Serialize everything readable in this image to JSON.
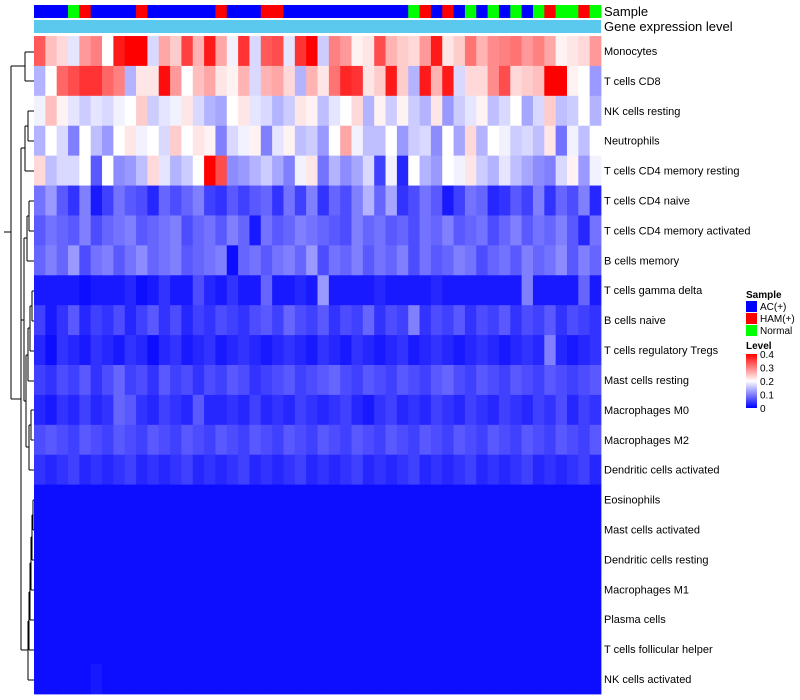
{
  "chart_data": {
    "type": "heatmap",
    "title": "",
    "annotations": {
      "sample_label": "Sample",
      "gene_label": "Gene expression level",
      "sample_groups": [
        "AC",
        "AC",
        "AC",
        "N",
        "HAM",
        "AC",
        "AC",
        "AC",
        "AC",
        "HAM",
        "AC",
        "AC",
        "AC",
        "AC",
        "AC",
        "AC",
        "HAM",
        "AC",
        "AC",
        "AC",
        "HAM",
        "HAM",
        "AC",
        "AC",
        "AC",
        "AC",
        "AC",
        "AC",
        "AC",
        "AC",
        "AC",
        "AC",
        "AC",
        "N",
        "HAM",
        "AC",
        "HAM",
        "AC",
        "N",
        "AC",
        "N",
        "AC",
        "N",
        "AC",
        "N",
        "HAM",
        "N",
        "N",
        "HAM",
        "N"
      ]
    },
    "rows": [
      "Monocytes",
      "T cells CD8",
      "NK cells resting",
      "Neutrophils",
      "T cells CD4 memory resting",
      "T cells CD4 naive",
      "T cells CD4 memory activated",
      "B cells memory",
      "T cells gamma delta",
      "B cells naive",
      "T cells regulatory  Tregs",
      "Mast cells resting",
      "Macrophages M0",
      "Macrophages M2",
      "Dendritic cells activated",
      "Eosinophils",
      "Mast cells activated",
      "Dendritic cells resting",
      "Macrophages M1",
      "Plasma cells",
      "T cells follicular helper",
      "NK cells activated"
    ],
    "matrix": [
      [
        0.33,
        0.25,
        0.23,
        0.18,
        0.28,
        0.3,
        0.2,
        0.38,
        0.4,
        0.4,
        0.17,
        0.27,
        0.24,
        0.35,
        0.26,
        0.38,
        0.27,
        0.19,
        0.36,
        0.17,
        0.33,
        0.34,
        0.18,
        0.36,
        0.4,
        0.16,
        0.3,
        0.28,
        0.21,
        0.22,
        0.34,
        0.26,
        0.24,
        0.23,
        0.28,
        0.38,
        0.22,
        0.24,
        0.31,
        0.26,
        0.29,
        0.3,
        0.31,
        0.28,
        0.3,
        0.27,
        0.21,
        0.22,
        0.23,
        0.28
      ],
      [
        0.14,
        0.2,
        0.32,
        0.34,
        0.36,
        0.36,
        0.32,
        0.3,
        0.14,
        0.22,
        0.22,
        0.39,
        0.28,
        0.2,
        0.25,
        0.27,
        0.22,
        0.21,
        0.26,
        0.17,
        0.26,
        0.27,
        0.23,
        0.14,
        0.26,
        0.22,
        0.31,
        0.37,
        0.36,
        0.22,
        0.24,
        0.38,
        0.24,
        0.14,
        0.38,
        0.26,
        0.38,
        0.17,
        0.23,
        0.23,
        0.29,
        0.34,
        0.23,
        0.24,
        0.25,
        0.4,
        0.4,
        0.21,
        0.2,
        0.12
      ],
      [
        0.19,
        0.25,
        0.21,
        0.18,
        0.16,
        0.18,
        0.17,
        0.19,
        0.2,
        0.24,
        0.16,
        0.18,
        0.19,
        0.22,
        0.17,
        0.14,
        0.13,
        0.2,
        0.22,
        0.18,
        0.17,
        0.14,
        0.16,
        0.22,
        0.21,
        0.15,
        0.18,
        0.2,
        0.23,
        0.14,
        0.21,
        0.16,
        0.21,
        0.16,
        0.14,
        0.22,
        0.12,
        0.16,
        0.18,
        0.21,
        0.15,
        0.17,
        0.2,
        0.13,
        0.17,
        0.24,
        0.15,
        0.16,
        0.2,
        0.14
      ],
      [
        0.14,
        0.2,
        0.17,
        0.1,
        0.2,
        0.15,
        0.12,
        0.2,
        0.22,
        0.19,
        0.2,
        0.17,
        0.24,
        0.2,
        0.22,
        0.21,
        0.1,
        0.17,
        0.19,
        0.21,
        0.1,
        0.18,
        0.21,
        0.15,
        0.16,
        0.12,
        0.2,
        0.27,
        0.19,
        0.15,
        0.15,
        0.2,
        0.12,
        0.16,
        0.17,
        0.11,
        0.2,
        0.13,
        0.23,
        0.14,
        0.2,
        0.19,
        0.16,
        0.17,
        0.15,
        0.22,
        0.09,
        0.19,
        0.15,
        0.2
      ],
      [
        0.23,
        0.15,
        0.17,
        0.17,
        0.2,
        0.07,
        0.2,
        0.11,
        0.12,
        0.15,
        0.23,
        0.18,
        0.14,
        0.16,
        0.2,
        0.4,
        0.34,
        0.11,
        0.12,
        0.14,
        0.16,
        0.13,
        0.1,
        0.19,
        0.22,
        0.09,
        0.14,
        0.11,
        0.13,
        0.17,
        0.05,
        0.19,
        0.03,
        0.2,
        0.14,
        0.12,
        0.2,
        0.19,
        0.22,
        0.16,
        0.14,
        0.18,
        0.15,
        0.13,
        0.11,
        0.1,
        0.17,
        0.21,
        0.12,
        0.19
      ],
      [
        0.09,
        0.12,
        0.07,
        0.04,
        0.1,
        0.02,
        0.05,
        0.09,
        0.07,
        0.06,
        0.03,
        0.08,
        0.06,
        0.08,
        0.1,
        0.05,
        0.04,
        0.07,
        0.05,
        0.07,
        0.08,
        0.04,
        0.09,
        0.05,
        0.1,
        0.04,
        0.08,
        0.06,
        0.1,
        0.14,
        0.08,
        0.13,
        0.04,
        0.06,
        0.09,
        0.07,
        0.02,
        0.05,
        0.09,
        0.08,
        0.03,
        0.04,
        0.07,
        0.05,
        0.1,
        0.04,
        0.08,
        0.06,
        0.1,
        0.03
      ],
      [
        0.07,
        0.09,
        0.08,
        0.07,
        0.1,
        0.06,
        0.08,
        0.09,
        0.1,
        0.07,
        0.08,
        0.09,
        0.1,
        0.06,
        0.08,
        0.09,
        0.07,
        0.1,
        0.08,
        0.02,
        0.09,
        0.07,
        0.08,
        0.1,
        0.09,
        0.08,
        0.07,
        0.06,
        0.1,
        0.08,
        0.09,
        0.07,
        0.08,
        0.06,
        0.09,
        0.08,
        0.1,
        0.07,
        0.08,
        0.09,
        0.06,
        0.08,
        0.1,
        0.07,
        0.09,
        0.08,
        0.1,
        0.07,
        0.03,
        0.09
      ],
      [
        0.08,
        0.1,
        0.08,
        0.12,
        0.06,
        0.09,
        0.1,
        0.07,
        0.09,
        0.11,
        0.08,
        0.09,
        0.1,
        0.07,
        0.08,
        0.09,
        0.1,
        0.01,
        0.08,
        0.09,
        0.07,
        0.09,
        0.1,
        0.08,
        0.12,
        0.06,
        0.09,
        0.08,
        0.1,
        0.07,
        0.09,
        0.08,
        0.1,
        0.06,
        0.09,
        0.07,
        0.08,
        0.1,
        0.09,
        0.06,
        0.08,
        0.09,
        0.07,
        0.1,
        0.08,
        0.09,
        0.11,
        0.07,
        0.1,
        0.08
      ],
      [
        0.02,
        0.02,
        0.02,
        0.02,
        0.01,
        0.02,
        0.02,
        0.02,
        0.03,
        0.01,
        0.02,
        0.04,
        0.02,
        0.02,
        0.06,
        0.03,
        0.02,
        0.04,
        0.02,
        0.02,
        0.08,
        0.02,
        0.02,
        0.03,
        0.02,
        0.12,
        0.02,
        0.02,
        0.02,
        0.02,
        0.03,
        0.02,
        0.02,
        0.02,
        0.02,
        0.03,
        0.02,
        0.02,
        0.02,
        0.02,
        0.02,
        0.02,
        0.02,
        0.1,
        0.02,
        0.02,
        0.02,
        0.02,
        0.08,
        0.02
      ],
      [
        0.05,
        0.02,
        0.04,
        0.07,
        0.03,
        0.05,
        0.04,
        0.06,
        0.03,
        0.05,
        0.07,
        0.04,
        0.06,
        0.03,
        0.05,
        0.04,
        0.06,
        0.05,
        0.04,
        0.06,
        0.07,
        0.05,
        0.08,
        0.06,
        0.05,
        0.07,
        0.04,
        0.06,
        0.05,
        0.08,
        0.04,
        0.06,
        0.05,
        0.1,
        0.04,
        0.06,
        0.05,
        0.07,
        0.04,
        0.06,
        0.05,
        0.07,
        0.04,
        0.06,
        0.05,
        0.07,
        0.04,
        0.06,
        0.05,
        0.04
      ],
      [
        0.03,
        0.01,
        0.04,
        0.03,
        0.02,
        0.04,
        0.03,
        0.02,
        0.04,
        0.03,
        0.01,
        0.03,
        0.04,
        0.02,
        0.03,
        0.04,
        0.02,
        0.03,
        0.04,
        0.03,
        0.02,
        0.03,
        0.04,
        0.03,
        0.02,
        0.04,
        0.03,
        0.02,
        0.04,
        0.03,
        0.02,
        0.03,
        0.04,
        0.02,
        0.03,
        0.04,
        0.03,
        0.02,
        0.03,
        0.04,
        0.03,
        0.02,
        0.03,
        0.04,
        0.03,
        0.1,
        0.03,
        0.02,
        0.03,
        0.04
      ],
      [
        0.05,
        0.04,
        0.06,
        0.05,
        0.07,
        0.04,
        0.06,
        0.08,
        0.05,
        0.06,
        0.04,
        0.07,
        0.05,
        0.06,
        0.04,
        0.06,
        0.05,
        0.07,
        0.06,
        0.04,
        0.05,
        0.06,
        0.07,
        0.05,
        0.06,
        0.07,
        0.08,
        0.06,
        0.05,
        0.07,
        0.06,
        0.05,
        0.07,
        0.06,
        0.05,
        0.07,
        0.08,
        0.06,
        0.05,
        0.07,
        0.06,
        0.05,
        0.07,
        0.06,
        0.05,
        0.07,
        0.06,
        0.05,
        0.06,
        0.07
      ],
      [
        0.03,
        0.02,
        0.04,
        0.03,
        0.05,
        0.03,
        0.04,
        0.08,
        0.07,
        0.04,
        0.03,
        0.05,
        0.04,
        0.03,
        0.07,
        0.03,
        0.03,
        0.04,
        0.03,
        0.05,
        0.03,
        0.04,
        0.03,
        0.05,
        0.04,
        0.03,
        0.04,
        0.05,
        0.03,
        0.02,
        0.04,
        0.05,
        0.03,
        0.04,
        0.03,
        0.05,
        0.04,
        0.03,
        0.05,
        0.04,
        0.03,
        0.05,
        0.04,
        0.03,
        0.05,
        0.04,
        0.06,
        0.03,
        0.05,
        0.04
      ],
      [
        0.06,
        0.07,
        0.06,
        0.05,
        0.07,
        0.06,
        0.05,
        0.07,
        0.06,
        0.05,
        0.07,
        0.06,
        0.05,
        0.07,
        0.06,
        0.05,
        0.07,
        0.06,
        0.05,
        0.07,
        0.06,
        0.05,
        0.07,
        0.06,
        0.05,
        0.07,
        0.06,
        0.05,
        0.07,
        0.06,
        0.05,
        0.07,
        0.06,
        0.05,
        0.07,
        0.06,
        0.05,
        0.07,
        0.06,
        0.05,
        0.07,
        0.06,
        0.05,
        0.07,
        0.06,
        0.05,
        0.07,
        0.06,
        0.05,
        0.07
      ],
      [
        0.04,
        0.03,
        0.04,
        0.05,
        0.03,
        0.04,
        0.03,
        0.04,
        0.05,
        0.03,
        0.04,
        0.03,
        0.04,
        0.05,
        0.03,
        0.04,
        0.03,
        0.04,
        0.05,
        0.03,
        0.04,
        0.03,
        0.04,
        0.05,
        0.03,
        0.04,
        0.03,
        0.04,
        0.05,
        0.03,
        0.04,
        0.03,
        0.04,
        0.05,
        0.03,
        0.04,
        0.03,
        0.04,
        0.05,
        0.03,
        0.04,
        0.03,
        0.04,
        0.05,
        0.03,
        0.04,
        0.03,
        0.04,
        0.05,
        0.03
      ],
      [
        0.01,
        0.01,
        0.01,
        0.01,
        0.01,
        0.01,
        0.01,
        0.01,
        0.01,
        0.01,
        0.01,
        0.01,
        0.01,
        0.01,
        0.01,
        0.01,
        0.01,
        0.01,
        0.01,
        0.01,
        0.01,
        0.01,
        0.01,
        0.01,
        0.01,
        0.01,
        0.01,
        0.01,
        0.01,
        0.01,
        0.01,
        0.01,
        0.01,
        0.01,
        0.01,
        0.01,
        0.01,
        0.01,
        0.01,
        0.01,
        0.01,
        0.01,
        0.01,
        0.01,
        0.01,
        0.01,
        0.01,
        0.01,
        0.01,
        0.01
      ],
      [
        0.01,
        0.01,
        0.01,
        0.01,
        0.01,
        0.01,
        0.01,
        0.01,
        0.01,
        0.01,
        0.01,
        0.01,
        0.01,
        0.01,
        0.01,
        0.01,
        0.01,
        0.01,
        0.01,
        0.01,
        0.01,
        0.01,
        0.01,
        0.01,
        0.01,
        0.01,
        0.01,
        0.01,
        0.01,
        0.01,
        0.01,
        0.01,
        0.01,
        0.01,
        0.01,
        0.01,
        0.01,
        0.01,
        0.01,
        0.01,
        0.01,
        0.01,
        0.01,
        0.01,
        0.01,
        0.01,
        0.01,
        0.01,
        0.01,
        0.01
      ],
      [
        0.01,
        0.01,
        0.01,
        0.01,
        0.01,
        0.01,
        0.01,
        0.01,
        0.01,
        0.01,
        0.01,
        0.01,
        0.01,
        0.01,
        0.01,
        0.01,
        0.01,
        0.01,
        0.01,
        0.01,
        0.01,
        0.01,
        0.01,
        0.01,
        0.01,
        0.01,
        0.01,
        0.01,
        0.01,
        0.01,
        0.01,
        0.01,
        0.01,
        0.01,
        0.01,
        0.01,
        0.01,
        0.01,
        0.01,
        0.01,
        0.01,
        0.01,
        0.01,
        0.01,
        0.01,
        0.01,
        0.01,
        0.01,
        0.01,
        0.01
      ],
      [
        0.01,
        0.01,
        0.01,
        0.01,
        0.01,
        0.01,
        0.01,
        0.01,
        0.01,
        0.01,
        0.01,
        0.01,
        0.01,
        0.01,
        0.01,
        0.01,
        0.01,
        0.01,
        0.01,
        0.01,
        0.01,
        0.01,
        0.01,
        0.01,
        0.01,
        0.01,
        0.01,
        0.01,
        0.01,
        0.01,
        0.01,
        0.01,
        0.01,
        0.01,
        0.01,
        0.01,
        0.01,
        0.01,
        0.01,
        0.01,
        0.01,
        0.01,
        0.01,
        0.01,
        0.01,
        0.01,
        0.01,
        0.01,
        0.01,
        0.01
      ],
      [
        0.01,
        0.01,
        0.01,
        0.01,
        0.01,
        0.01,
        0.01,
        0.01,
        0.01,
        0.01,
        0.01,
        0.01,
        0.01,
        0.01,
        0.01,
        0.01,
        0.01,
        0.01,
        0.01,
        0.01,
        0.01,
        0.01,
        0.01,
        0.01,
        0.01,
        0.01,
        0.01,
        0.01,
        0.01,
        0.01,
        0.01,
        0.01,
        0.01,
        0.01,
        0.01,
        0.01,
        0.01,
        0.01,
        0.01,
        0.01,
        0.01,
        0.01,
        0.01,
        0.01,
        0.01,
        0.01,
        0.01,
        0.01,
        0.01,
        0.01
      ],
      [
        0.01,
        0.01,
        0.01,
        0.01,
        0.01,
        0.01,
        0.01,
        0.01,
        0.01,
        0.01,
        0.01,
        0.01,
        0.01,
        0.01,
        0.01,
        0.01,
        0.01,
        0.01,
        0.01,
        0.01,
        0.01,
        0.01,
        0.01,
        0.01,
        0.01,
        0.01,
        0.01,
        0.01,
        0.01,
        0.01,
        0.01,
        0.01,
        0.01,
        0.01,
        0.01,
        0.01,
        0.01,
        0.01,
        0.01,
        0.01,
        0.01,
        0.01,
        0.01,
        0.01,
        0.01,
        0.01,
        0.01,
        0.01,
        0.01,
        0.01
      ],
      [
        0.01,
        0.01,
        0.01,
        0.01,
        0.01,
        0.02,
        0.01,
        0.01,
        0.01,
        0.01,
        0.01,
        0.01,
        0.01,
        0.01,
        0.01,
        0.01,
        0.01,
        0.01,
        0.01,
        0.01,
        0.01,
        0.01,
        0.01,
        0.01,
        0.01,
        0.01,
        0.01,
        0.01,
        0.01,
        0.01,
        0.01,
        0.01,
        0.01,
        0.01,
        0.01,
        0.01,
        0.01,
        0.01,
        0.01,
        0.01,
        0.01,
        0.01,
        0.01,
        0.01,
        0.01,
        0.01,
        0.01,
        0.01,
        0.01,
        0.01
      ]
    ],
    "scale": {
      "min": 0,
      "max": 0.4,
      "ticks": [
        0.4,
        0.3,
        0.2,
        0.1,
        0
      ]
    },
    "colors": {
      "low": "#0000ff",
      "mid": "#ffffff",
      "high": "#ff0000",
      "gene_bar": "#5bc8ee"
    },
    "legend": {
      "sample_title": "Sample",
      "sample_items": [
        {
          "key": "AC",
          "label": "AC(+)",
          "color": "#0000ff"
        },
        {
          "key": "HAM",
          "label": "HAM(+)",
          "color": "#ff0000"
        },
        {
          "key": "N",
          "label": "Normal",
          "color": "#00ff00"
        }
      ],
      "level_title": "Level",
      "position": "right"
    }
  }
}
